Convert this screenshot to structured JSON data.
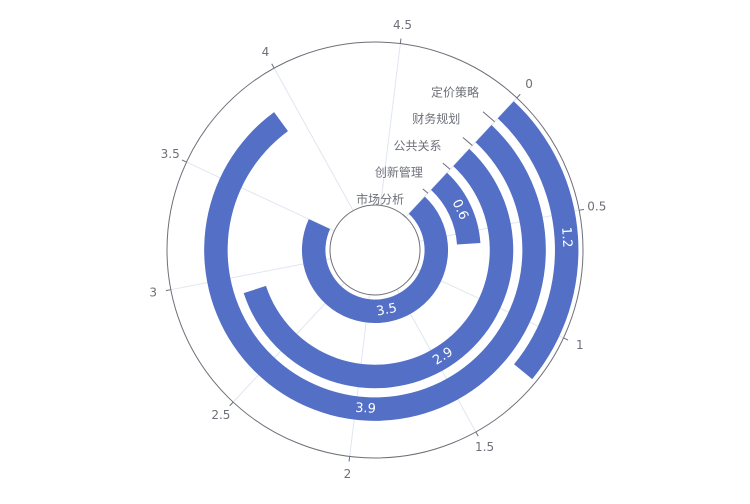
{
  "chart_data": {
    "type": "polar_bar",
    "categories": [
      "市场分析",
      "创新管理",
      "公共关系",
      "财务规划",
      "定价策略"
    ],
    "values": [
      3.5,
      0.6,
      2.9,
      3.9,
      1.2
    ],
    "color": "#5470c6",
    "anglelim": [
      0,
      5
    ],
    "angleticks": [
      0,
      0.5,
      1,
      1.5,
      2,
      2.5,
      3,
      3.5,
      4,
      4.5
    ]
  }
}
